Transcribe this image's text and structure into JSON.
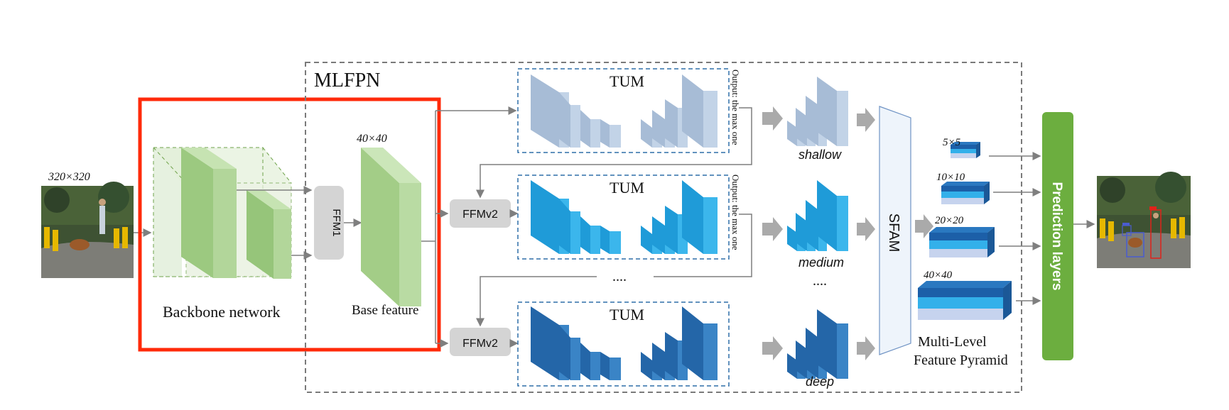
{
  "input_image": {
    "size_label": "320×320"
  },
  "output_image": {},
  "backbone": {
    "label": "Backbone network"
  },
  "ffm1": {
    "label": "FFM1"
  },
  "base_feature": {
    "size_label": "40×40",
    "label": "Base feature"
  },
  "mlfpn": {
    "label": "MLFPN"
  },
  "tum_blocks": [
    {
      "label": "TUM",
      "output_note": "Output: the max one"
    },
    {
      "label": "TUM",
      "output_note": "Output: the max one"
    },
    {
      "label": "TUM"
    }
  ],
  "ffmv2": [
    {
      "label": "FFMv2"
    },
    {
      "label": "FFMv2"
    }
  ],
  "ellipsis": "....",
  "levels": [
    {
      "label": "shallow"
    },
    {
      "label": "medium"
    },
    {
      "label": "deep"
    }
  ],
  "sfam": {
    "label": "SFAM"
  },
  "pyramid": {
    "scales": [
      "5×5",
      "10×10",
      "20×20",
      "40×40"
    ],
    "caption_line1": "Multi-Level",
    "caption_line2": "Feature Pyramid"
  },
  "prediction": {
    "label": "Prediction layers"
  },
  "colors": {
    "highlight": "#ff2a0a",
    "backbone_green": "#a9cf8e",
    "tum_light": "#b6c8de",
    "tum_mid": "#29a8e3",
    "tum_dark": "#2a72b5",
    "prediction_green": "#6cae3f",
    "dashed_border": "#7a7a7a"
  }
}
